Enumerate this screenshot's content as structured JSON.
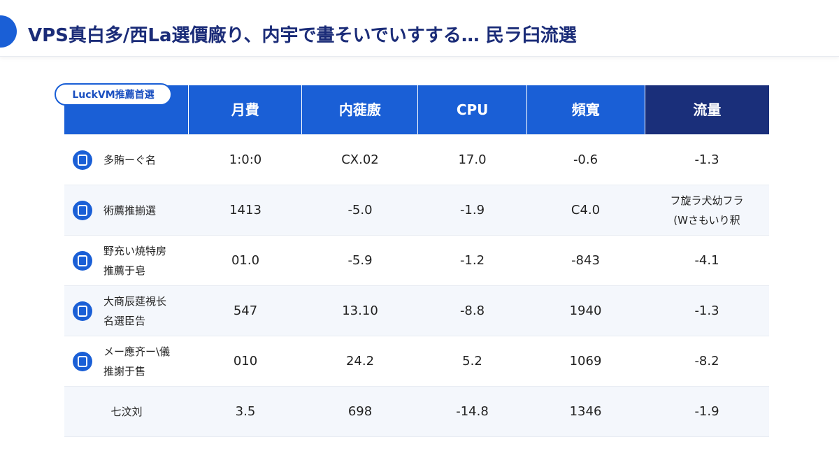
{
  "header": {
    "title": "VPS真白多/西La選價廠り、内宇で畫そいでいすする… 民ラ臼流選"
  },
  "badge": "LuckVM推薦首選",
  "table": {
    "columns": [
      "月費",
      "内蓰廒",
      "CPU",
      "頻寬",
      "流量"
    ],
    "rows": [
      {
        "label": [
          "多賄ーぐ名"
        ],
        "cells": [
          [
            "1:0:0"
          ],
          [
            "CX.02"
          ],
          [
            "17.0"
          ],
          [
            "-0.6"
          ],
          [
            "-1.3"
          ]
        ]
      },
      {
        "label": [
          "術薦推揃選"
        ],
        "cells": [
          [
            "1413"
          ],
          [
            "-5.0"
          ],
          [
            "-1.9"
          ],
          [
            "C4.0"
          ],
          [
            "フ旋ラ犬幼フラ",
            "(Wさもいり釈"
          ]
        ]
      },
      {
        "label": [
          "野充い焼特房",
          "推薦于皂"
        ],
        "cells": [
          [
            "01.0"
          ],
          [
            "-5.9"
          ],
          [
            "-1.2"
          ],
          [
            "-843"
          ],
          [
            "-4.1"
          ]
        ]
      },
      {
        "label": [
          "大商辰莚視长",
          "名選臣告"
        ],
        "cells": [
          [
            "547"
          ],
          [
            "13.10"
          ],
          [
            "-8.8"
          ],
          [
            "1940"
          ],
          [
            "-1.3"
          ]
        ]
      },
      {
        "label": [
          "メー應齐ー\\儀",
          "推謝于售"
        ],
        "cells": [
          [
            "010"
          ],
          [
            "24.2"
          ],
          [
            "5.2"
          ],
          [
            "1069"
          ],
          [
            "-8.2"
          ]
        ]
      },
      {
        "label": [
          "七汶刘"
        ],
        "cells": [
          [
            "3.5"
          ],
          [
            "698"
          ],
          [
            "-14.8"
          ],
          [
            "1346"
          ],
          [
            "-1.9"
          ]
        ]
      }
    ]
  }
}
